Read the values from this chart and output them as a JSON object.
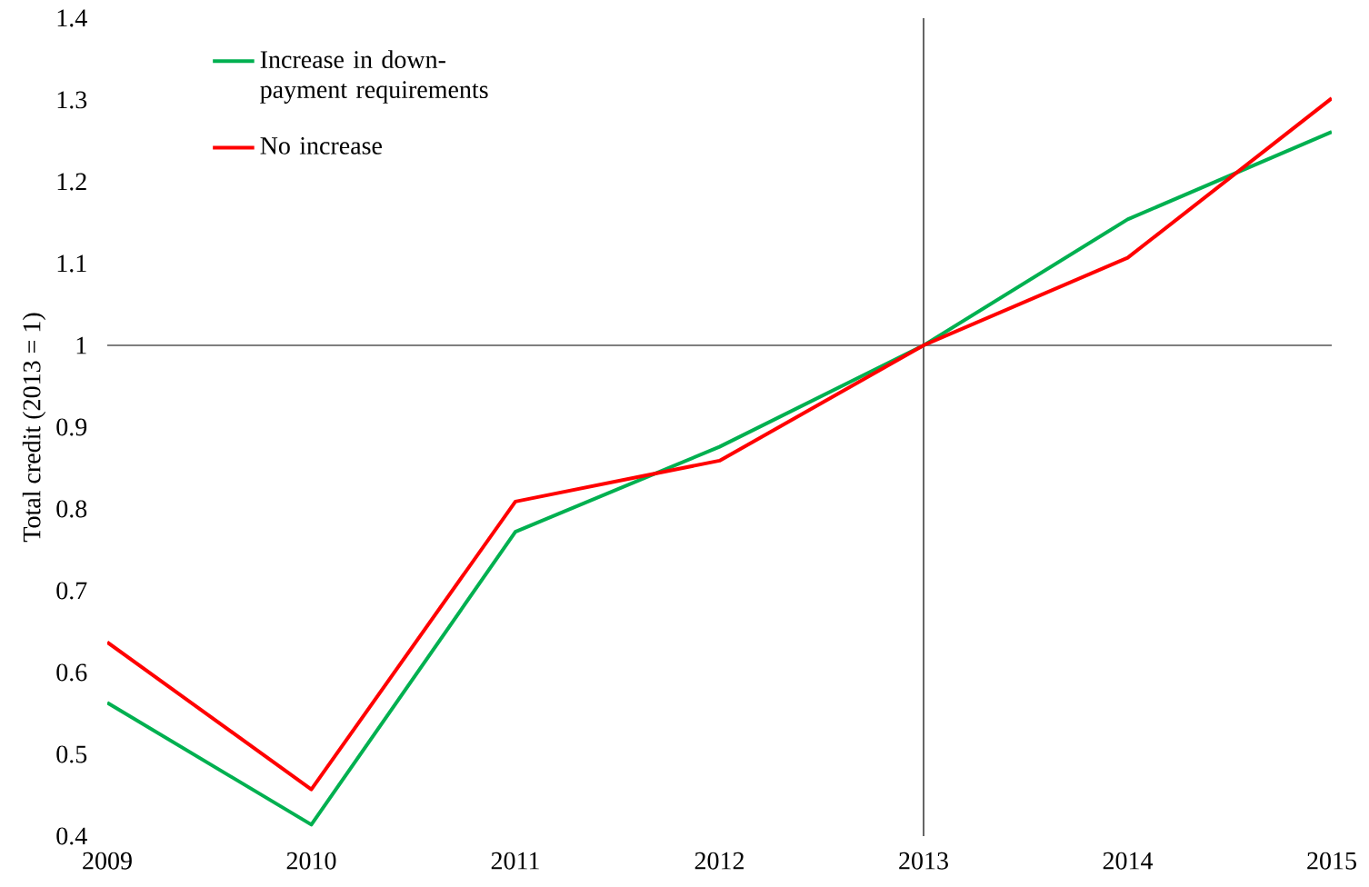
{
  "chart_data": {
    "type": "line",
    "ylabel": "Total credit (2013 = 1)",
    "x": [
      2009,
      2010,
      2011,
      2012,
      2013,
      2014,
      2015
    ],
    "series": [
      {
        "name": "Increase in down-payment requirements",
        "color": "#00b050",
        "values": [
          0.563,
          0.414,
          0.772,
          0.876,
          1.0,
          1.154,
          1.261
        ]
      },
      {
        "name": "No increase",
        "color": "#ff0000",
        "values": [
          0.637,
          0.457,
          0.809,
          0.859,
          1.0,
          1.107,
          1.302
        ]
      }
    ],
    "xlim": [
      2009,
      2015
    ],
    "xticks": [
      2009,
      2010,
      2011,
      2012,
      2013,
      2014,
      2015
    ],
    "ylim": [
      0.4,
      1.4
    ],
    "yticks": [
      0.4,
      0.5,
      0.6,
      0.7,
      0.8,
      0.9,
      1,
      1.1,
      1.2,
      1.3,
      1.4
    ],
    "ref_lines": [
      {
        "axis": "y",
        "value": 1,
        "color": "#000000"
      },
      {
        "axis": "x",
        "value": 2013,
        "color": "#000000"
      }
    ],
    "legend": "top left",
    "marker": "none",
    "line_style": "solid"
  }
}
